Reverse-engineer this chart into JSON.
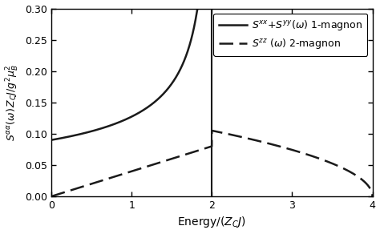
{
  "xlim": [
    0,
    4
  ],
  "ylim": [
    0,
    0.3
  ],
  "xticks": [
    0,
    1,
    2,
    3,
    4
  ],
  "yticks": [
    0.0,
    0.05,
    0.1,
    0.15,
    0.2,
    0.25,
    0.3
  ],
  "vline_x": 2.0,
  "omega_c": 2.0,
  "S1_at_0": 0.09,
  "S2_peak": 0.105,
  "S2_max_omega": 4.0,
  "line_color": "#1a1a1a",
  "background_color": "#ffffff",
  "figsize": [
    4.74,
    2.92
  ],
  "dpi": 100
}
